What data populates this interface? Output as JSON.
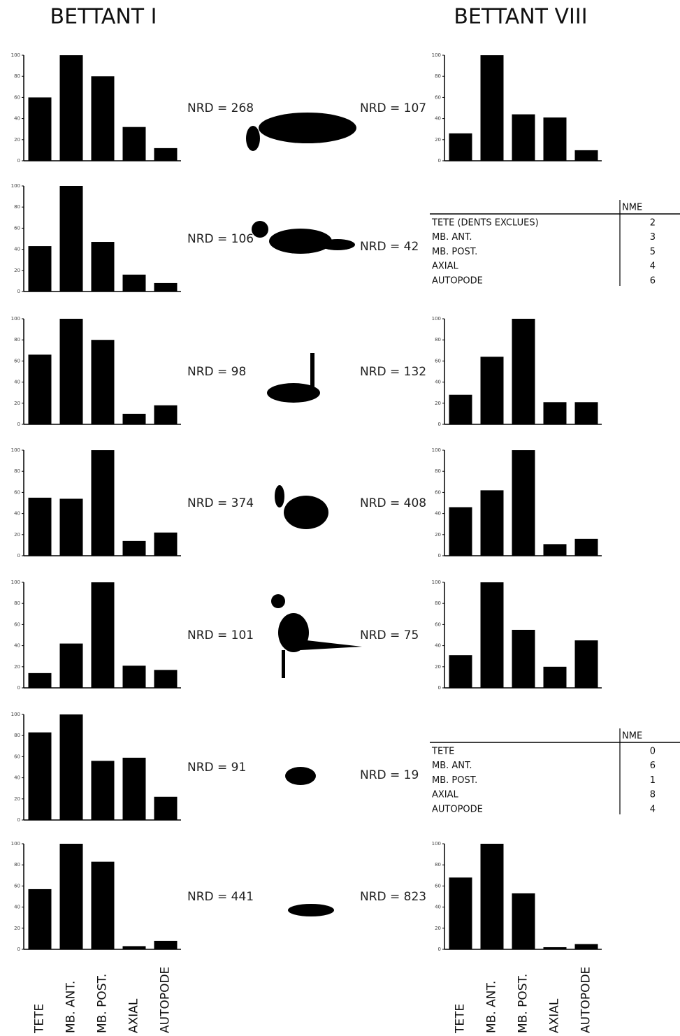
{
  "columns": [
    {
      "title": "BETTANT I"
    },
    {
      "title": "BETTANT VIII"
    }
  ],
  "chart_data": [
    {
      "type": "bar",
      "annotation": "NRD = 268",
      "values": [
        60,
        100,
        80,
        32,
        12
      ],
      "color": "#000000",
      "ylim": [
        0,
        100
      ],
      "yticks": [
        0,
        20,
        40,
        60,
        80,
        100
      ]
    },
    {
      "type": "bar",
      "annotation": "NRD = 106",
      "values": [
        43,
        100,
        47,
        16,
        8
      ],
      "color": "#000000",
      "ylim": [
        0,
        100
      ],
      "yticks": [
        0,
        20,
        40,
        60,
        80,
        100
      ]
    },
    {
      "type": "bar",
      "annotation": "NRD = 98",
      "values": [
        66,
        100,
        80,
        10,
        18
      ],
      "color": "#000000",
      "ylim": [
        0,
        100
      ],
      "yticks": [
        0,
        20,
        40,
        60,
        80,
        100
      ]
    },
    {
      "type": "bar",
      "annotation": "NRD = 374",
      "values": [
        55,
        54,
        100,
        14,
        22
      ],
      "color": "#000000",
      "ylim": [
        0,
        100
      ],
      "yticks": [
        0,
        20,
        40,
        60,
        80,
        100
      ]
    },
    {
      "type": "bar",
      "annotation": "NRD = 101",
      "values": [
        14,
        42,
        100,
        21,
        17
      ],
      "color": "#000000",
      "ylim": [
        0,
        100
      ],
      "yticks": [
        0,
        20,
        40,
        60,
        80,
        100
      ]
    },
    {
      "type": "bar",
      "annotation": "NRD = 91",
      "values": [
        83,
        100,
        56,
        59,
        22
      ],
      "color": "#000000",
      "ylim": [
        0,
        100
      ],
      "yticks": [
        0,
        20,
        40,
        60,
        80,
        100
      ]
    },
    {
      "type": "bar",
      "annotation": "NRD = 441",
      "categories": [
        "TETE",
        "MB. ANT.",
        "MB. POST.",
        "AXIAL",
        "AUTOPODE"
      ],
      "values": [
        57,
        100,
        83,
        3,
        8
      ],
      "color": "#000000",
      "ylim": [
        0,
        100
      ],
      "yticks": [
        0,
        20,
        40,
        60,
        80,
        100
      ]
    },
    {
      "type": "bar",
      "annotation": "NRD = 107",
      "values": [
        26,
        100,
        44,
        41,
        10
      ],
      "color": "#000000",
      "ylim": [
        0,
        100
      ],
      "yticks": [
        0,
        20,
        40,
        60,
        80,
        100
      ]
    },
    {
      "type": "bar",
      "annotation": "NRD = 132",
      "values": [
        28,
        64,
        100,
        21,
        21
      ],
      "color": "#000000",
      "ylim": [
        0,
        100
      ],
      "yticks": [
        0,
        20,
        40,
        60,
        80,
        100
      ]
    },
    {
      "type": "bar",
      "annotation": "NRD = 408",
      "values": [
        46,
        62,
        100,
        11,
        16
      ],
      "color": "#000000",
      "ylim": [
        0,
        100
      ],
      "yticks": [
        0,
        20,
        40,
        60,
        80,
        100
      ]
    },
    {
      "type": "bar",
      "annotation": "NRD = 75",
      "values": [
        31,
        100,
        55,
        20,
        45
      ],
      "color": "#000000",
      "ylim": [
        0,
        100
      ],
      "yticks": [
        0,
        20,
        40,
        60,
        80,
        100
      ]
    },
    {
      "type": "bar",
      "annotation": "NRD = 823",
      "categories": [
        "TETE",
        "MB. ANT.",
        "MB. POST.",
        "AXIAL",
        "AUTOPODE"
      ],
      "values": [
        68,
        100,
        53,
        2,
        5
      ],
      "color": "#000000",
      "ylim": [
        0,
        100
      ],
      "yticks": [
        0,
        20,
        40,
        60,
        80,
        100
      ]
    }
  ],
  "tables": [
    {
      "annotation": "NRD = 42",
      "header": "NME",
      "rows": [
        [
          "TETE (DENTS EXCLUES)",
          2
        ],
        [
          "MB. ANT.",
          3
        ],
        [
          "MB. POST.",
          5
        ],
        [
          "AXIAL",
          4
        ],
        [
          "AUTOPODE",
          6
        ]
      ]
    },
    {
      "annotation": "NRD = 19",
      "header": "NME",
      "rows": [
        [
          "TETE",
          0
        ],
        [
          "MB. ANT.",
          6
        ],
        [
          "MB. POST.",
          1
        ],
        [
          "AXIAL",
          8
        ],
        [
          "AUTOPODE",
          4
        ]
      ]
    }
  ]
}
